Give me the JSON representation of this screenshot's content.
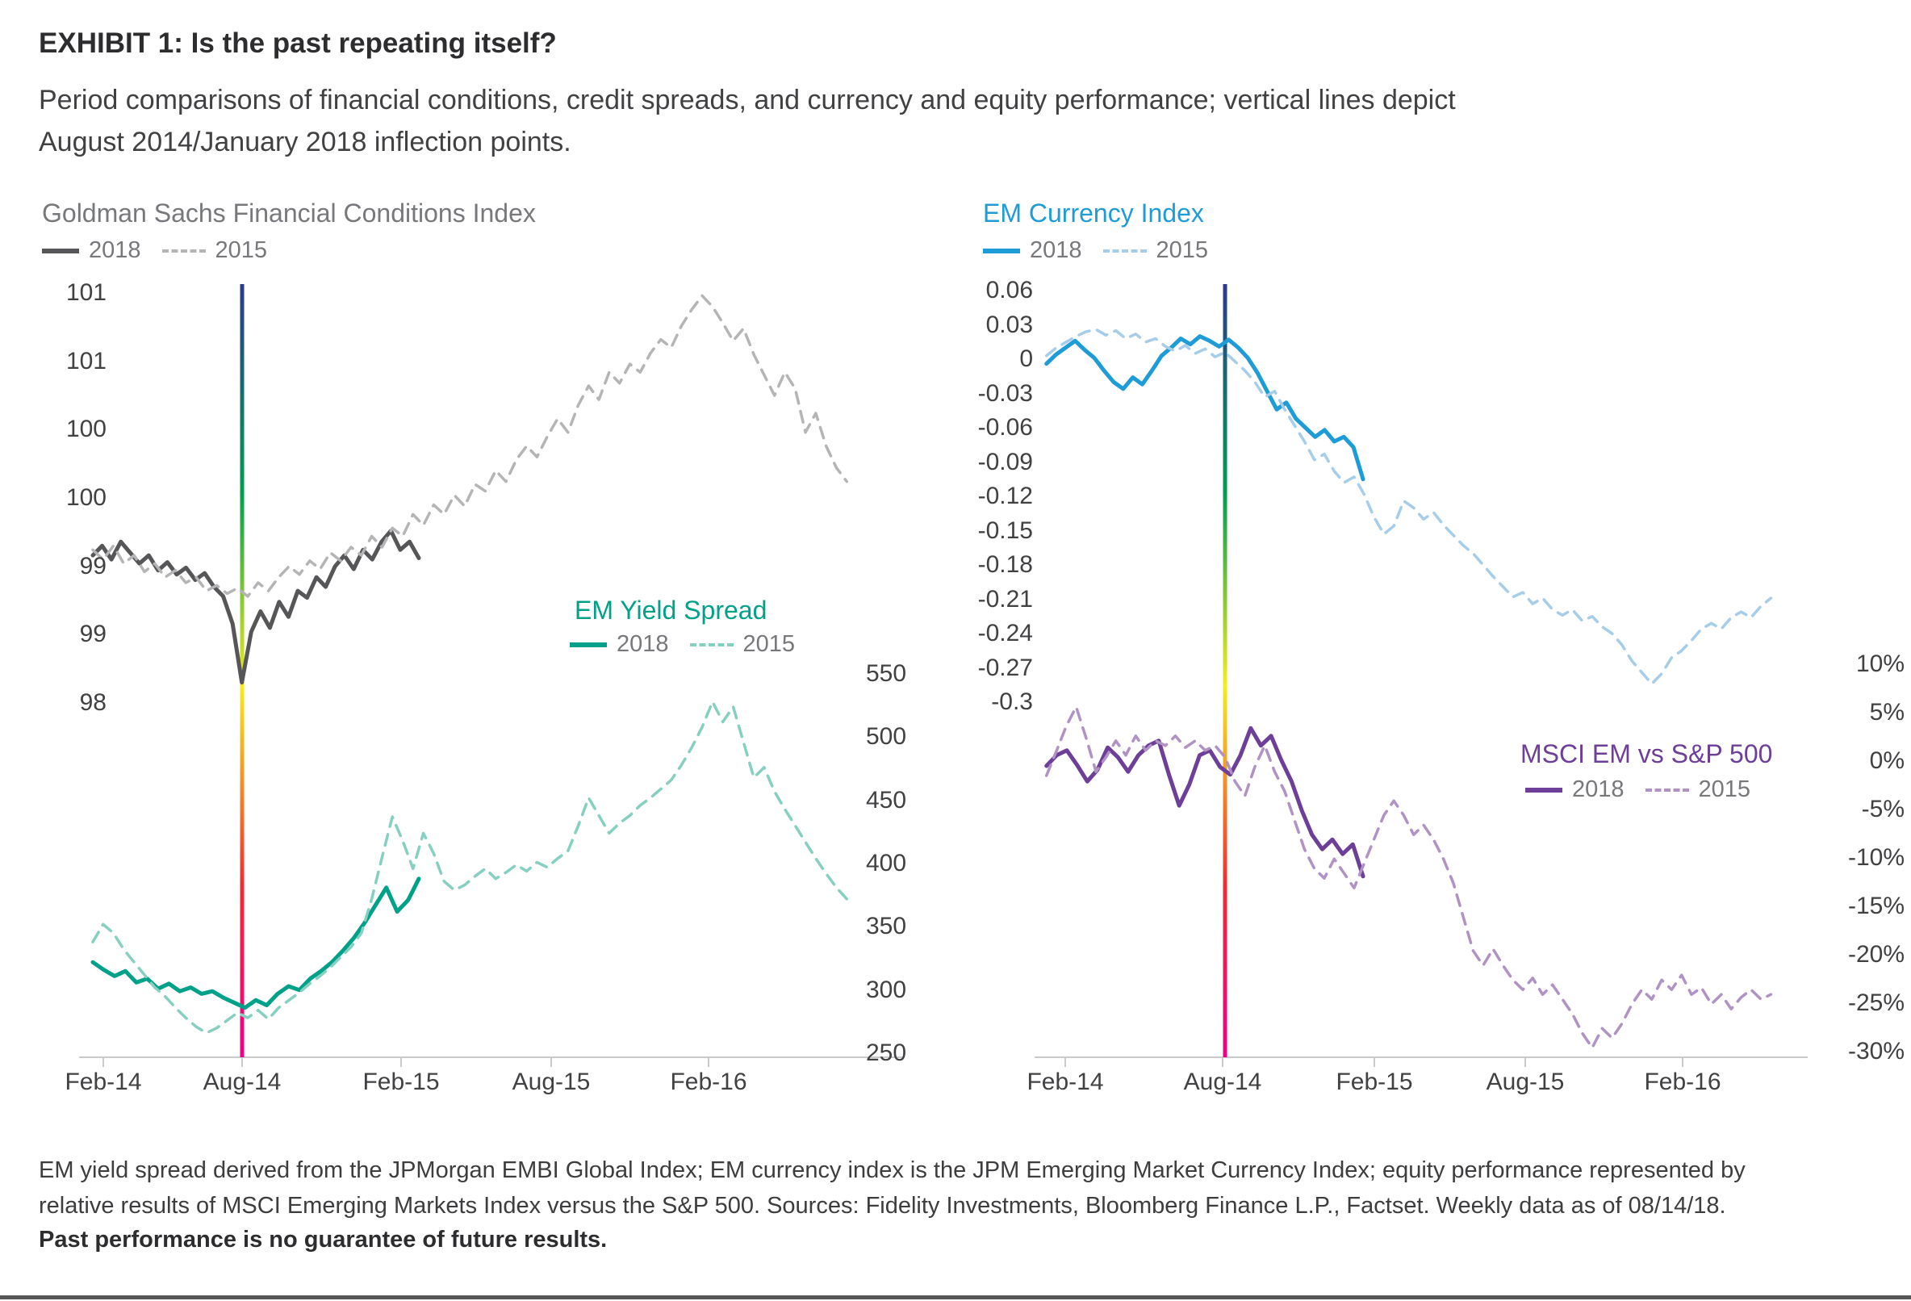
{
  "header": {
    "title": "EXHIBIT 1: Is the past repeating itself?",
    "subtitle_line1": "Period comparisons of financial conditions, credit spreads, and currency and equity performance; vertical lines depict",
    "subtitle_line2": "August 2014/January 2018 inflection points."
  },
  "x_tick_labels": [
    "Feb-14",
    "Aug-14",
    "Feb-15",
    "Aug-15",
    "Feb-16"
  ],
  "inflection_annotation": "Vertical gradient lines mark the August 2014 / January 2018 inflection points",
  "colors": {
    "vline_gradient": [
      "#2b3990",
      "#009e4f",
      "#f5ec1e",
      "#ee2b33",
      "#ec008c"
    ],
    "axis_line": "#c9cacb",
    "tick_text": "#414144",
    "legend_text": "#77787b"
  },
  "chart_data": [
    {
      "id": "gs-fci",
      "type": "line",
      "title": "Goldman Sachs Financial Conditions Index",
      "title_color": "#77787b",
      "ylabel_side": "left",
      "ylim": [
        98.0,
        101.0
      ],
      "yticks": [
        {
          "label": "101",
          "value": 101.0
        },
        {
          "label": "101",
          "value": 100.5
        },
        {
          "label": "100",
          "value": 100.0
        },
        {
          "label": "100",
          "value": 99.5
        },
        {
          "label": "99",
          "value": 99.0
        },
        {
          "label": "99",
          "value": 98.5
        },
        {
          "label": "98",
          "value": 98.0
        }
      ],
      "series": [
        {
          "name": "2018",
          "style": "solid",
          "color": "#565659",
          "x0": 0.005,
          "x1": 0.405,
          "values": [
            99.08,
            99.15,
            99.05,
            99.18,
            99.1,
            99.02,
            99.08,
            98.97,
            99.03,
            98.94,
            98.99,
            98.9,
            98.95,
            98.85,
            98.78,
            98.58,
            98.15,
            98.52,
            98.67,
            98.55,
            98.74,
            98.63,
            98.82,
            98.77,
            98.92,
            98.85,
            99.0,
            99.08,
            98.98,
            99.12,
            99.05,
            99.18,
            99.26,
            99.12,
            99.18,
            99.06
          ]
        },
        {
          "name": "2015",
          "style": "dashed",
          "color": "#b5b5b7",
          "x0": 0.005,
          "x1": 0.93,
          "values": [
            99.12,
            99.05,
            99.15,
            99.02,
            99.08,
            98.96,
            99.02,
            98.92,
            98.97,
            98.88,
            98.92,
            98.82,
            98.86,
            98.8,
            98.84,
            98.78,
            98.88,
            98.82,
            98.92,
            99.0,
            98.94,
            99.04,
            98.98,
            99.1,
            99.04,
            99.14,
            99.08,
            99.22,
            99.14,
            99.28,
            99.22,
            99.38,
            99.3,
            99.45,
            99.38,
            99.52,
            99.44,
            99.6,
            99.55,
            99.7,
            99.62,
            99.78,
            99.88,
            99.8,
            99.95,
            100.08,
            99.98,
            100.18,
            100.32,
            100.22,
            100.42,
            100.34,
            100.48,
            100.42,
            100.56,
            100.66,
            100.6,
            100.76,
            100.88,
            100.98,
            100.9,
            100.78,
            100.65,
            100.74,
            100.55,
            100.4,
            100.25,
            100.42,
            100.3,
            99.98,
            100.12,
            99.88,
            99.72,
            99.62
          ]
        }
      ]
    },
    {
      "id": "em-yield-spread",
      "type": "line",
      "title": "EM Yield Spread",
      "title_color": "#00a189",
      "ylabel_side": "right",
      "ylim": [
        250,
        550
      ],
      "yticks": [
        {
          "label": "550",
          "value": 550
        },
        {
          "label": "500",
          "value": 500
        },
        {
          "label": "450",
          "value": 450
        },
        {
          "label": "400",
          "value": 400
        },
        {
          "label": "350",
          "value": 350
        },
        {
          "label": "300",
          "value": 300
        },
        {
          "label": "250",
          "value": 250
        }
      ],
      "series": [
        {
          "name": "2018",
          "style": "solid",
          "color": "#00a189",
          "x0": 0.005,
          "x1": 0.405,
          "values": [
            322,
            316,
            311,
            315,
            306,
            309,
            301,
            305,
            299,
            302,
            297,
            299,
            294,
            290,
            286,
            292,
            288,
            297,
            303,
            300,
            309,
            315,
            322,
            331,
            341,
            353,
            367,
            381,
            362,
            371,
            388
          ]
        },
        {
          "name": "2015",
          "style": "dashed",
          "color": "#86d0c2",
          "x0": 0.005,
          "x1": 0.93,
          "values": [
            338,
            352,
            345,
            332,
            322,
            312,
            302,
            295,
            286,
            278,
            271,
            266,
            270,
            276,
            282,
            278,
            284,
            277,
            286,
            292,
            298,
            305,
            311,
            318,
            326,
            334,
            345,
            372,
            405,
            437,
            418,
            396,
            424,
            408,
            386,
            379,
            383,
            390,
            396,
            388,
            393,
            399,
            394,
            401,
            397,
            404,
            410,
            430,
            452,
            438,
            424,
            432,
            438,
            446,
            452,
            459,
            466,
            478,
            492,
            508,
            528,
            512,
            524,
            496,
            468,
            476,
            457,
            443,
            430,
            417,
            404,
            392,
            381,
            372
          ]
        }
      ]
    },
    {
      "id": "em-currency-index",
      "type": "line",
      "title": "EM Currency Index",
      "title_color": "#1e9cd7",
      "ylabel_side": "left",
      "ylim": [
        -0.3,
        0.06
      ],
      "yticks": [
        {
          "label": "0.06",
          "value": 0.06
        },
        {
          "label": "0.03",
          "value": 0.03
        },
        {
          "label": "0",
          "value": 0
        },
        {
          "label": "-0.03",
          "value": -0.03
        },
        {
          "label": "-0.06",
          "value": -0.06
        },
        {
          "label": "-0.09",
          "value": -0.09
        },
        {
          "label": "-0.12",
          "value": -0.12
        },
        {
          "label": "-0.15",
          "value": -0.15
        },
        {
          "label": "-0.18",
          "value": -0.18
        },
        {
          "label": "-0.21",
          "value": -0.21
        },
        {
          "label": "-0.24",
          "value": -0.24
        },
        {
          "label": "-0.27",
          "value": -0.27
        },
        {
          "label": "-0.3",
          "value": -0.3
        }
      ],
      "series": [
        {
          "name": "2018",
          "style": "solid",
          "color": "#1e9cd7",
          "x0": 0.007,
          "x1": 0.42,
          "values": [
            -0.004,
            0.004,
            0.01,
            0.016,
            0.008,
            0.001,
            -0.01,
            -0.02,
            -0.026,
            -0.016,
            -0.022,
            -0.01,
            0.003,
            0.01,
            0.018,
            0.013,
            0.02,
            0.016,
            0.011,
            0.017,
            0.01,
            0.001,
            -0.012,
            -0.028,
            -0.044,
            -0.038,
            -0.052,
            -0.06,
            -0.068,
            -0.062,
            -0.072,
            -0.068,
            -0.077,
            -0.105
          ]
        },
        {
          "name": "2015",
          "style": "dashed",
          "color": "#a6cde9",
          "x0": 0.007,
          "x1": 0.952,
          "values": [
            0.003,
            0.01,
            0.015,
            0.02,
            0.024,
            0.026,
            0.021,
            0.025,
            0.018,
            0.022,
            0.015,
            0.018,
            0.011,
            0.007,
            0.012,
            0.005,
            0.009,
            0.002,
            0.006,
            -0.002,
            -0.01,
            -0.02,
            -0.033,
            -0.028,
            -0.044,
            -0.058,
            -0.072,
            -0.088,
            -0.083,
            -0.098,
            -0.108,
            -0.103,
            -0.118,
            -0.138,
            -0.153,
            -0.146,
            -0.124,
            -0.13,
            -0.14,
            -0.134,
            -0.145,
            -0.154,
            -0.163,
            -0.17,
            -0.18,
            -0.19,
            -0.199,
            -0.208,
            -0.204,
            -0.214,
            -0.209,
            -0.219,
            -0.224,
            -0.219,
            -0.229,
            -0.225,
            -0.234,
            -0.24,
            -0.25,
            -0.264,
            -0.274,
            -0.284,
            -0.275,
            -0.261,
            -0.255,
            -0.246,
            -0.236,
            -0.231,
            -0.236,
            -0.226,
            -0.221,
            -0.226,
            -0.216,
            -0.209
          ]
        }
      ]
    },
    {
      "id": "msci-em-vs-sp500",
      "type": "line",
      "title": "MSCI EM vs S&P 500",
      "title_color": "#6d3f99",
      "ylabel_side": "right",
      "unit": "%",
      "ylim": [
        -30,
        10
      ],
      "yticks": [
        {
          "label": "10%",
          "value": 10
        },
        {
          "label": "5%",
          "value": 5
        },
        {
          "label": "0%",
          "value": 0
        },
        {
          "label": "-5%",
          "value": -5
        },
        {
          "label": "-10%",
          "value": -10
        },
        {
          "label": "-15%",
          "value": -15
        },
        {
          "label": "-20%",
          "value": -20
        },
        {
          "label": "-25%",
          "value": -25
        },
        {
          "label": "-30%",
          "value": -30
        }
      ],
      "series": [
        {
          "name": "2018",
          "style": "solid",
          "color": "#6d3f99",
          "x0": 0.007,
          "x1": 0.42,
          "values": [
            -0.5,
            0.6,
            1.1,
            -0.4,
            -2.1,
            -0.9,
            1.4,
            0.4,
            -1.1,
            0.6,
            1.6,
            2.1,
            -1.4,
            -4.6,
            -2.4,
            0.6,
            1.1,
            -0.6,
            -1.4,
            0.6,
            3.4,
            1.6,
            2.6,
            0.1,
            -2.1,
            -5.1,
            -7.6,
            -9.1,
            -8.1,
            -9.6,
            -8.6,
            -11.9
          ]
        },
        {
          "name": "2015",
          "style": "dashed",
          "color": "#b093c4",
          "x0": 0.007,
          "x1": 0.952,
          "values": [
            -1.5,
            1.0,
            3.6,
            5.6,
            2.4,
            -1.1,
            0.4,
            2.1,
            0.6,
            2.6,
            1.1,
            2.1,
            1.6,
            2.6,
            1.4,
            2.1,
            1.1,
            1.6,
            0.4,
            -2.1,
            -3.6,
            -0.6,
            1.6,
            -1.1,
            -3.1,
            -6.1,
            -9.1,
            -11.1,
            -12.1,
            -10.1,
            -11.6,
            -13.1,
            -10.6,
            -8.1,
            -5.6,
            -4.1,
            -5.6,
            -7.6,
            -6.6,
            -8.1,
            -10.1,
            -12.6,
            -16.1,
            -19.6,
            -21.1,
            -19.4,
            -21.1,
            -22.6,
            -23.6,
            -22.4,
            -24.1,
            -23.1,
            -24.6,
            -26.1,
            -28.1,
            -29.6,
            -27.6,
            -28.6,
            -27.1,
            -25.1,
            -23.6,
            -24.6,
            -22.6,
            -23.6,
            -22.1,
            -24.1,
            -23.4,
            -25.1,
            -24.1,
            -25.6,
            -24.4,
            -23.6,
            -24.6,
            -24.1
          ]
        }
      ]
    }
  ],
  "footnote": {
    "line1": "EM yield spread derived from the JPMorgan EMBI Global Index; EM currency index is the JPM Emerging Market Currency Index; equity performance represented by",
    "line2": "relative results of MSCI Emerging Markets Index versus the S&P 500. Sources: Fidelity Investments, Bloomberg Finance L.P., Factset. Weekly data as of 08/14/18.",
    "disclaimer": "Past performance is no guarantee of future results."
  }
}
